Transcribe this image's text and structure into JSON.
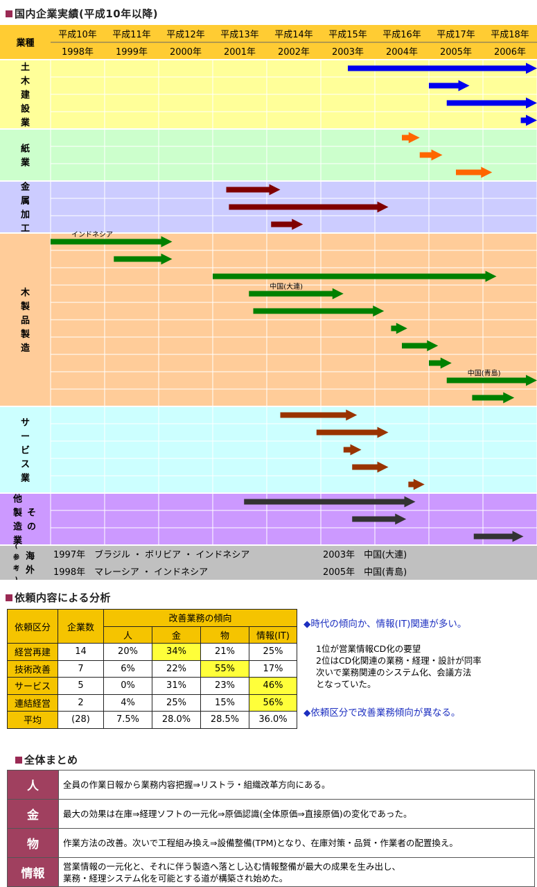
{
  "section1": {
    "title": "国内企業実績(平成10年以降)",
    "corner_label": "業種",
    "years": [
      {
        "era": "平成10年",
        "ad": "1998年"
      },
      {
        "era": "平成11年",
        "ad": "1999年"
      },
      {
        "era": "平成12年",
        "ad": "2000年"
      },
      {
        "era": "平成13年",
        "ad": "2001年"
      },
      {
        "era": "平成14年",
        "ad": "2002年"
      },
      {
        "era": "平成15年",
        "ad": "2003年"
      },
      {
        "era": "平成16年",
        "ad": "2004年"
      },
      {
        "era": "平成17年",
        "ad": "2005年"
      },
      {
        "era": "平成18年",
        "ad": "2006年"
      }
    ],
    "industries": [
      {
        "label": "土木建設業",
        "color": "#ffff99",
        "arrow_color": "#0000ee",
        "bars": [
          {
            "start": 2003.5,
            "end": 2007.0
          },
          {
            "start": 2005.0,
            "end": 2005.75
          },
          {
            "start": 2005.33,
            "end": 2007.0
          },
          {
            "start": 2006.7,
            "end": 2007.0
          }
        ]
      },
      {
        "label": "紙業",
        "color": "#ccffcc",
        "arrow_color": "#ff6600",
        "bars": [
          {
            "start": 2004.5,
            "end": 2004.83
          },
          {
            "start": 2004.83,
            "end": 2005.25
          },
          {
            "start": 2005.5,
            "end": 2006.17
          }
        ]
      },
      {
        "label": "金属加工",
        "color": "#ccccff",
        "arrow_color": "#800000",
        "bars": [
          {
            "start": 2001.25,
            "end": 2002.25
          },
          {
            "start": 2001.3,
            "end": 2004.25
          },
          {
            "start": 2002.08,
            "end": 2002.67
          }
        ]
      },
      {
        "label": "木製品製造",
        "color": "#ffcc99",
        "arrow_color": "#008000",
        "bars": [
          {
            "start": 1998.0,
            "end": 2000.25,
            "note": "インドネシア"
          },
          {
            "start": 1999.17,
            "end": 2000.25
          },
          {
            "start": 2001.0,
            "end": 2006.25
          },
          {
            "start": 2001.67,
            "end": 2003.42,
            "note": "中国(大連)"
          },
          {
            "start": 2001.75,
            "end": 2004.17
          },
          {
            "start": 2004.3,
            "end": 2004.6
          },
          {
            "start": 2004.5,
            "end": 2005.17
          },
          {
            "start": 2005.0,
            "end": 2005.42
          },
          {
            "start": 2005.33,
            "end": 2007.0,
            "note": "中国(青島)"
          },
          {
            "start": 2005.8,
            "end": 2006.58
          }
        ]
      },
      {
        "label": "サービス業",
        "color": "#ccffff",
        "arrow_color": "#993300",
        "bars": [
          {
            "start": 2002.25,
            "end": 2003.67
          },
          {
            "start": 2002.92,
            "end": 2004.25
          },
          {
            "start": 2003.42,
            "end": 2003.75
          },
          {
            "start": 2003.58,
            "end": 2004.25
          },
          {
            "start": 2004.62,
            "end": 2004.92
          }
        ]
      },
      {
        "label": "その他製造業",
        "color": "#cc99ff",
        "arrow_color": "#333333",
        "bars": [
          {
            "start": 2001.58,
            "end": 2004.75
          },
          {
            "start": 2003.58,
            "end": 2004.58
          },
          {
            "start": 2005.83,
            "end": 2006.75
          }
        ]
      }
    ],
    "overseas": {
      "label": "海外",
      "label_note": "(参考)",
      "rows": [
        {
          "left": "1997年　ブラジル ・ ボリビア ・ インドネシア",
          "right": "2003年　中国(大連)"
        },
        {
          "left": "1998年　マレーシア ・ インドネシア",
          "right": "2005年　中国(青島)"
        }
      ]
    }
  },
  "section2": {
    "title": "依頼内容による分析",
    "header": {
      "category": "依頼区分",
      "count": "企業数",
      "group": "改善業務の傾向",
      "cols": [
        "人",
        "金",
        "物",
        "情報(IT)"
      ]
    },
    "rows": [
      {
        "label": "経営再建",
        "count": "14",
        "values": [
          "20%",
          "34%",
          "21%",
          "25%"
        ],
        "hl": 1
      },
      {
        "label": "技術改善",
        "count": "7",
        "values": [
          "6%",
          "22%",
          "55%",
          "17%"
        ],
        "hl": 2
      },
      {
        "label": "サービス",
        "count": "5",
        "values": [
          "0%",
          "31%",
          "23%",
          "46%"
        ],
        "hl": 3
      },
      {
        "label": "連結経営",
        "count": "2",
        "values": [
          "4%",
          "25%",
          "15%",
          "56%"
        ],
        "hl": 3
      }
    ],
    "average": {
      "label": "平均",
      "count": "(28)",
      "values": [
        "7.5%",
        "28.0%",
        "28.5%",
        "36.0%"
      ]
    },
    "note1": "◆時代の傾向か、情報(IT)関連が多い。",
    "note_lines": [
      "1位が営業情報CD化の要望",
      "2位はCD化関連の業務・経理・設計が同率",
      "次いで業務関連のシステム化、会議方法",
      "となっていた。"
    ],
    "note2": "◆依頼区分で改善業務傾向が異なる。"
  },
  "section3": {
    "title": "全体まとめ",
    "rows": [
      {
        "key": "人",
        "lines": [
          "全員の作業日報から業務内容把握⇒リストラ・組織改革方向にある。"
        ]
      },
      {
        "key": "金",
        "lines": [
          "最大の効果は在庫⇒経理ソフトの一元化⇒原価認識(全体原価⇒直接原価)の変化であった。"
        ]
      },
      {
        "key": "物",
        "lines": [
          "作業方法の改善。次いで工程組み換え⇒設備整備(TPM)となり、在庫対策・品質・作業者の配置換え。"
        ]
      },
      {
        "key": "情報",
        "lines": [
          "営業情報の一元化と、それに伴う製造へ落とし込む情報整備が最大の成果を生み出し、",
          "業務・経理システム化を可能とする道が構築され始めた。"
        ]
      }
    ]
  }
}
